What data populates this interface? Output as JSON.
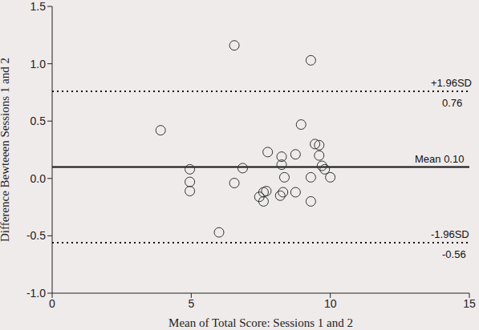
{
  "chart_data": {
    "type": "scatter",
    "xlabel": "Mean of Total Score: Sessions 1 and 2",
    "ylabel": "Difference Bewteeen Sessions 1 and 2",
    "x": [
      3.9,
      4.95,
      4.95,
      4.95,
      6.0,
      6.55,
      6.55,
      6.85,
      7.45,
      7.6,
      7.6,
      7.7,
      7.75,
      8.2,
      8.25,
      8.25,
      8.35,
      8.3,
      8.75,
      8.75,
      8.95,
      9.3,
      9.3,
      9.3,
      9.45,
      9.6,
      9.6,
      9.7,
      9.8,
      10.0
    ],
    "values": [
      0.42,
      0.08,
      -0.03,
      -0.11,
      -0.47,
      1.16,
      -0.04,
      0.09,
      -0.16,
      -0.12,
      -0.2,
      -0.11,
      0.23,
      -0.15,
      0.19,
      0.12,
      0.01,
      -0.12,
      0.21,
      -0.12,
      0.47,
      1.03,
      0.01,
      -0.2,
      0.3,
      0.29,
      0.2,
      0.11,
      0.08,
      0.01
    ],
    "color": "#333333",
    "marker": "circle_open",
    "xlim": [
      0,
      15
    ],
    "xticks": [
      0,
      5,
      10,
      15
    ],
    "ylim": [
      -1,
      1.5
    ],
    "yticks": [
      {
        "value": -1,
        "label": "-1.0"
      },
      -0.5,
      {
        "value": 0,
        "label": "0.0"
      },
      0.5,
      {
        "value": 1,
        "label": "1.0"
      },
      1.5
    ],
    "reference_lines": [
      {
        "value": 0.76,
        "label": "+1.96SD",
        "value_label": "0.76",
        "line_style": "dotted"
      },
      {
        "value": 0.1,
        "label": "Mean",
        "value_label": "0.10",
        "line_style": "solid"
      },
      {
        "value": -0.56,
        "label": "-1.96SD",
        "value_label": "-0.56",
        "line_style": "dotted"
      }
    ],
    "grid": false
  }
}
